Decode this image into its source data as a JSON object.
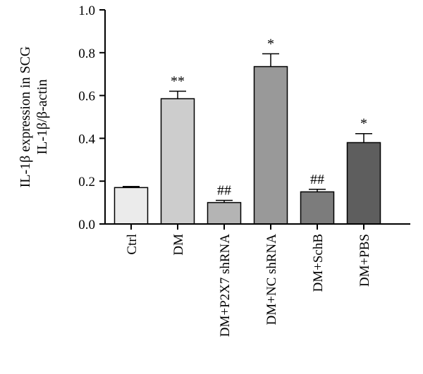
{
  "chart_data": {
    "type": "bar",
    "categories": [
      "Ctrl",
      "DM",
      "DM+P2X7 shRNA",
      "DM+NC shRNA",
      "DM+SchB",
      "DM+PBS"
    ],
    "values": [
      0.17,
      0.585,
      0.1,
      0.735,
      0.15,
      0.38
    ],
    "errors": [
      0.005,
      0.035,
      0.01,
      0.06,
      0.012,
      0.042
    ],
    "significance": [
      "",
      "**",
      "##",
      "*",
      "##",
      "*"
    ],
    "colors": [
      "#ebebeb",
      "#cdcdcd",
      "#b4b4b4",
      "#999999",
      "#7c7c7c",
      "#5e5e5e"
    ],
    "ylabel_line1": "IL-1β expression in SCG",
    "ylabel_line2": "IL-1β/β-actin",
    "ylim": [
      0,
      1.0
    ],
    "yticks": [
      "0.0",
      "0.2",
      "0.4",
      "0.6",
      "0.8",
      "1.0"
    ],
    "grid": false,
    "legend": "none"
  }
}
